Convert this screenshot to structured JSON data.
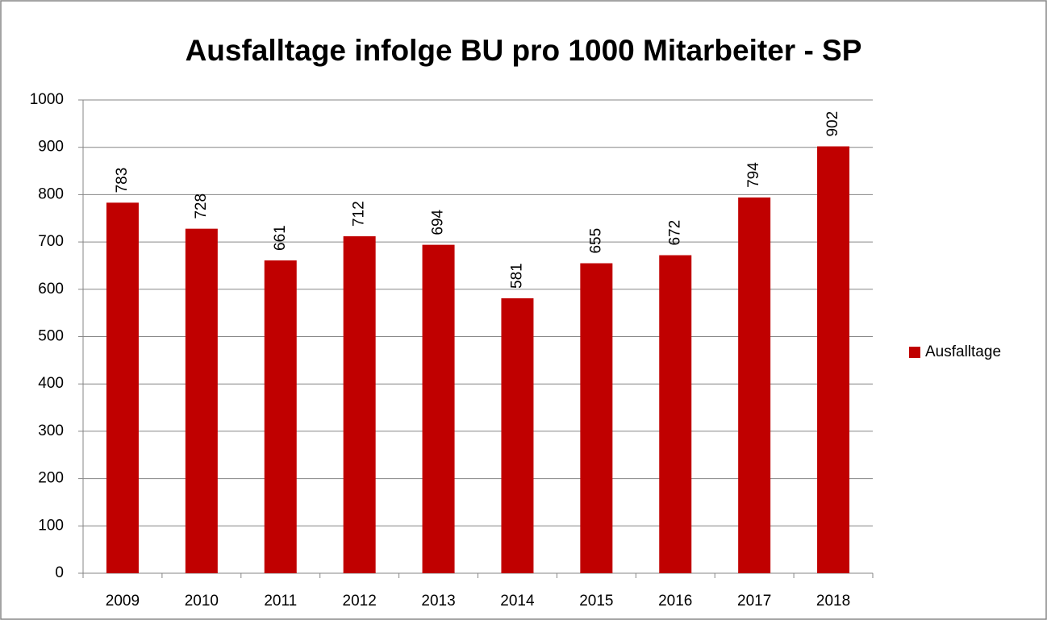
{
  "chart_data": {
    "type": "bar",
    "title": "Ausfalltage infolge BU pro 1000 Mitarbeiter - SP",
    "categories": [
      "2009",
      "2010",
      "2011",
      "2012",
      "2013",
      "2014",
      "2015",
      "2016",
      "2017",
      "2018"
    ],
    "series": [
      {
        "name": "Ausfalltage",
        "color": "#c00000",
        "values": [
          783,
          728,
          661,
          712,
          694,
          581,
          655,
          672,
          794,
          902
        ]
      }
    ],
    "ylim": [
      0,
      1000
    ],
    "yticks": [
      0,
      100,
      200,
      300,
      400,
      500,
      600,
      700,
      800,
      900,
      1000
    ],
    "grid": true,
    "legend": "right"
  }
}
